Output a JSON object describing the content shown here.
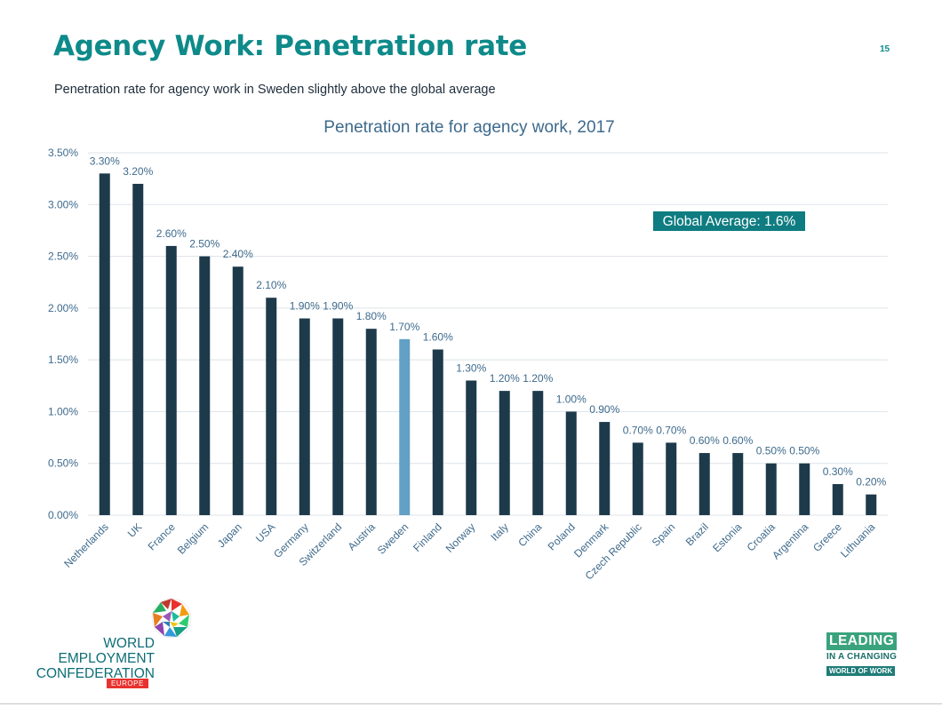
{
  "slide": {
    "title": "Agency Work: Penetration rate",
    "page_number": "15",
    "subtitle": "Penetration rate for agency work in Sweden slightly above the global average"
  },
  "chart_data": {
    "type": "bar",
    "title": "Penetration rate for agency work, 2017",
    "xlabel": "",
    "ylabel": "",
    "ylim": [
      0,
      3.5
    ],
    "yticks": [
      "0.00%",
      "0.50%",
      "1.00%",
      "1.50%",
      "2.00%",
      "2.50%",
      "3.00%",
      "3.50%"
    ],
    "grid": true,
    "categories": [
      "Netherlands",
      "UK",
      "France",
      "Belgium",
      "Japan",
      "USA",
      "Germany",
      "Switzerland",
      "Austria",
      "Sweden",
      "Finland",
      "Norway",
      "Italy",
      "China",
      "Poland",
      "Denmark",
      "Czech Republic",
      "Spain",
      "Brazil",
      "Estonia",
      "Croatia",
      "Argentina",
      "Greece",
      "Lithuania"
    ],
    "values": [
      3.3,
      3.2,
      2.6,
      2.5,
      2.4,
      2.1,
      1.9,
      1.9,
      1.8,
      1.7,
      1.6,
      1.3,
      1.2,
      1.2,
      1.0,
      0.9,
      0.7,
      0.7,
      0.6,
      0.6,
      0.5,
      0.5,
      0.3,
      0.2
    ],
    "data_labels": [
      "3.30%",
      "3.20%",
      "2.60%",
      "2.50%",
      "2.40%",
      "2.10%",
      "1.90%",
      "1.90%",
      "1.80%",
      "1.70%",
      "1.60%",
      "1.30%",
      "1.20%",
      "1.20%",
      "1.00%",
      "0.90%",
      "0.70%",
      "0.70%",
      "0.60%",
      "0.60%",
      "0.50%",
      "0.50%",
      "0.30%",
      "0.20%"
    ],
    "highlight_category": "Sweden",
    "annotation": "Global Average: 1.6%",
    "colors": {
      "bar": "#1d3a4b",
      "highlight": "#62a0c6",
      "text": "#3e6a8c",
      "grid": "#dde3e8",
      "annotation_bg": "#0e7c80",
      "annotation_text": "#ffffff"
    }
  },
  "logos": {
    "wec": {
      "line1": "WORLD",
      "line2": "EMPLOYMENT",
      "line3": "CONFEDERATION",
      "badge": "EUROPE"
    },
    "leading": {
      "line1": "LEADING",
      "line2": "IN A CHANGING",
      "line3": "WORLD OF WORK"
    }
  }
}
